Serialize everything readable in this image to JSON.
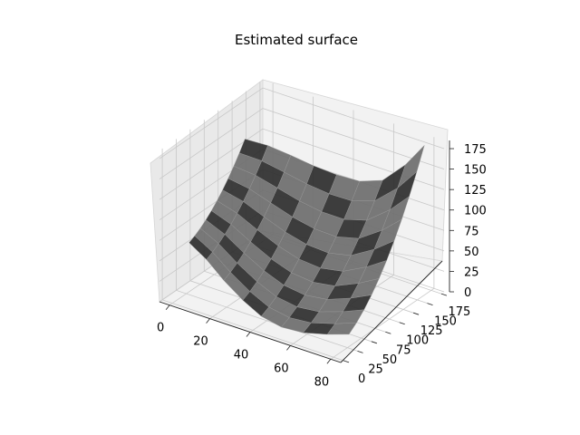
{
  "chart_data": {
    "type": "surface3d",
    "title": "Estimated surface",
    "grid": true,
    "colors": {
      "surface": "#6e6e6e",
      "surface_dark": "#2e2e2e",
      "pane": "#f2f2f2",
      "pane_side": "#e9e9e9",
      "grid": "#c8c8c8"
    },
    "x_axis": {
      "ticks": [
        0,
        20,
        40,
        60,
        80
      ],
      "range": [
        -5,
        85
      ]
    },
    "y_axis": {
      "ticks": [
        0,
        25,
        50,
        75,
        100,
        125,
        150,
        175
      ],
      "range": [
        -5,
        180
      ]
    },
    "z_axis": {
      "ticks": [
        0,
        25,
        50,
        75,
        100,
        125,
        150,
        175
      ],
      "range": [
        0,
        185
      ]
    },
    "series": [
      {
        "name": "",
        "surface_rows": [
          {
            "x": 0,
            "y_start": 30,
            "y_end": 130,
            "z_start": 60,
            "z_end": 140
          },
          {
            "x": 10,
            "y_start": 25,
            "y_end": 135,
            "z_start": 50,
            "z_end": 138
          },
          {
            "x": 20,
            "y_start": 20,
            "y_end": 140,
            "z_start": 35,
            "z_end": 132
          },
          {
            "x": 30,
            "y_start": 18,
            "y_end": 145,
            "z_start": 20,
            "z_end": 125
          },
          {
            "x": 40,
            "y_start": 15,
            "y_end": 150,
            "z_start": 10,
            "z_end": 120
          },
          {
            "x": 50,
            "y_start": 15,
            "y_end": 155,
            "z_start": 5,
            "z_end": 118
          },
          {
            "x": 60,
            "y_start": 18,
            "y_end": 160,
            "z_start": 5,
            "z_end": 125
          },
          {
            "x": 70,
            "y_start": 25,
            "y_end": 165,
            "z_start": 8,
            "z_end": 150
          },
          {
            "x": 78,
            "y_start": 35,
            "y_end": 170,
            "z_start": 10,
            "z_end": 178
          }
        ]
      }
    ]
  }
}
